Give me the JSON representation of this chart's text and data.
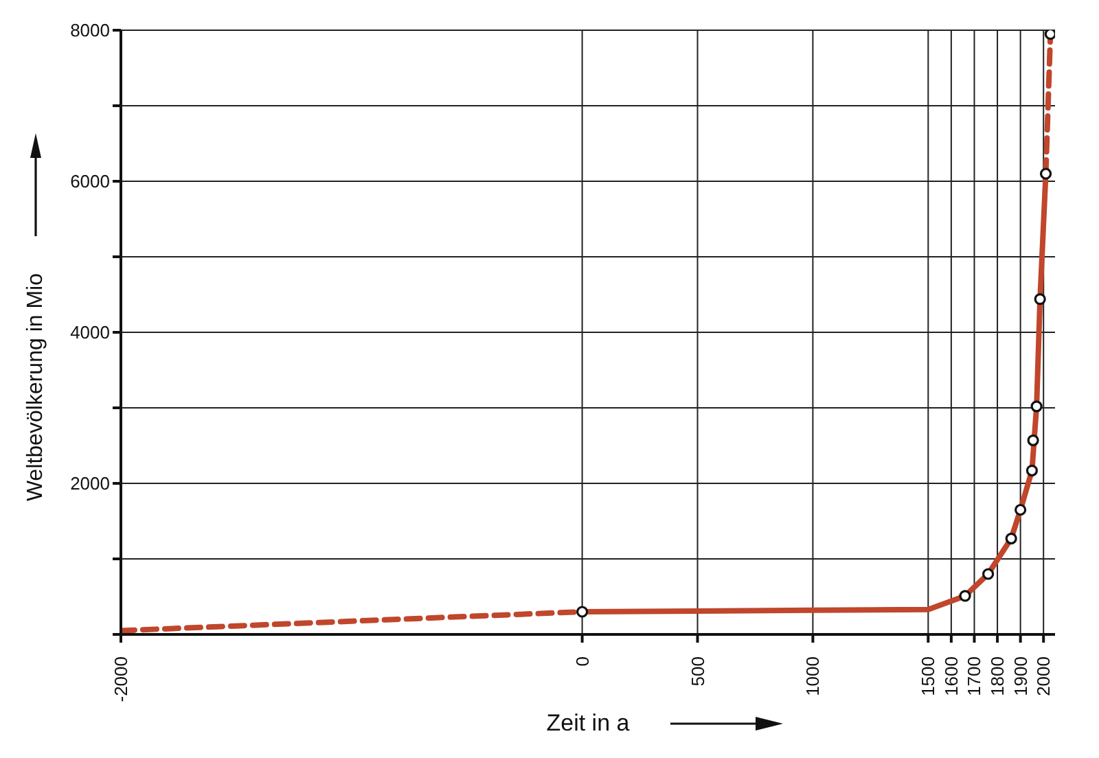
{
  "chart_data": {
    "type": "line",
    "xlabel": "Zeit in a",
    "ylabel": "Weltbevölkerung in Mio",
    "xlim": [
      -2000,
      2050
    ],
    "xticks": [
      -2000,
      0,
      500,
      1000,
      1500,
      1600,
      1700,
      1800,
      1900,
      2000
    ],
    "ylim": [
      0,
      8000
    ],
    "yticks": [
      {
        "value": 0,
        "label": null
      },
      {
        "value": 1000,
        "label": null
      },
      2000,
      {
        "value": 3000,
        "label": null
      },
      4000,
      {
        "value": 5000,
        "label": null
      },
      6000,
      {
        "value": 7000,
        "label": null
      },
      8000
    ],
    "grid": true,
    "series": [
      {
        "line_style": "dashed",
        "marker": "none",
        "color": "#c0462c",
        "x": [
          -2000,
          0
        ],
        "values": [
          50,
          300
        ]
      },
      {
        "line_style": "solid",
        "marker": "none",
        "color": "#c0462c",
        "x": [
          0,
          500,
          1000,
          1500,
          1660,
          1760,
          1860,
          1900,
          1950,
          1970,
          1985,
          2010
        ],
        "values": [
          300,
          310,
          320,
          330,
          510,
          800,
          1270,
          1650,
          2170,
          3020,
          4440,
          6100
        ]
      },
      {
        "line_style": "dashed",
        "marker": "none",
        "color": "#c0462c",
        "x": [
          2010,
          2030
        ],
        "values": [
          6100,
          7950
        ]
      },
      {
        "type": "scatter",
        "marker": "circle",
        "color": "#111111",
        "x": [
          0,
          1660,
          1760,
          1860,
          1900,
          1950,
          1955,
          1970,
          1985,
          2010,
          2030
        ],
        "values": [
          300,
          510,
          800,
          1270,
          1650,
          2170,
          2570,
          3020,
          4440,
          6100,
          7950
        ]
      }
    ]
  }
}
